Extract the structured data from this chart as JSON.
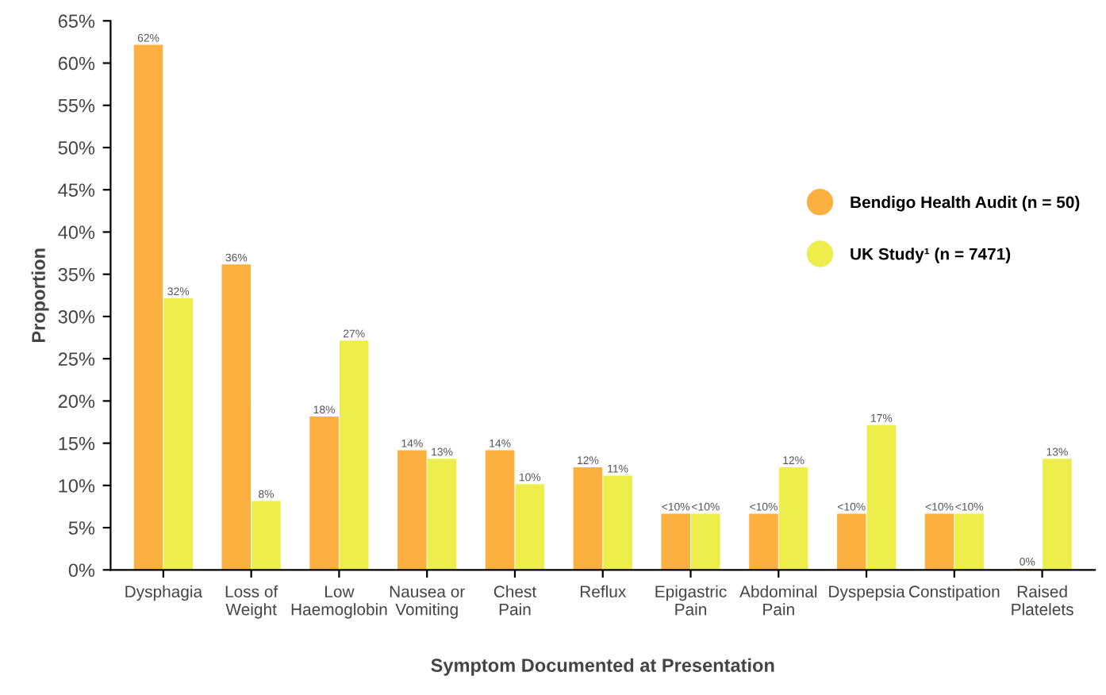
{
  "chart_data": {
    "type": "bar",
    "xlabel": "Symptom Documented at Presentation",
    "ylabel": "Proportion",
    "categories": [
      "Dysphagia",
      "Loss of\nWeight",
      "Low\nHaemoglobin",
      "Nausea or\nVomiting",
      "Chest\nPain",
      "Reflux",
      "Epigastric\nPain",
      "Abdominal\nPain",
      "Dyspepsia",
      "Constipation",
      "Raised\nPlatelets"
    ],
    "series": [
      {
        "name": "Bendigo Health Audit (n = 50)",
        "color": "#fbb040",
        "values": [
          62,
          36,
          18,
          14,
          14,
          12,
          6.5,
          6.5,
          6.5,
          6.5,
          0
        ],
        "value_labels": [
          "62%",
          "36%",
          "18%",
          "14%",
          "14%",
          "12%",
          "<10%",
          "<10%",
          "<10%",
          "<10%",
          "0%"
        ]
      },
      {
        "name": "UK Study¹ (n = 7471)",
        "color": "#eded4b",
        "values": [
          32,
          8,
          27,
          13,
          10,
          11,
          6.5,
          12,
          17,
          6.5,
          13
        ],
        "value_labels": [
          "32%",
          "8%",
          "27%",
          "13%",
          "10%",
          "11%",
          "<10%",
          "12%",
          "17%",
          "<10%",
          "13%"
        ]
      }
    ],
    "ylim": [
      0,
      65
    ],
    "yticks": [
      {
        "value": 0,
        "label": "0%"
      },
      {
        "value": 5,
        "label": "5%"
      },
      {
        "value": 10,
        "label": "10%"
      },
      {
        "value": 15,
        "label": "15%"
      },
      {
        "value": 20,
        "label": "20%"
      },
      {
        "value": 25,
        "label": "25%"
      },
      {
        "value": 30,
        "label": "30%"
      },
      {
        "value": 35,
        "label": "35%"
      },
      {
        "value": 40,
        "label": "40%"
      },
      {
        "value": 45,
        "label": "45%"
      },
      {
        "value": 50,
        "label": "50%"
      },
      {
        "value": 55,
        "label": "55%"
      },
      {
        "value": 60,
        "label": "60%"
      },
      {
        "value": 65,
        "label": "65%"
      }
    ],
    "grid": false,
    "legend": "right"
  }
}
